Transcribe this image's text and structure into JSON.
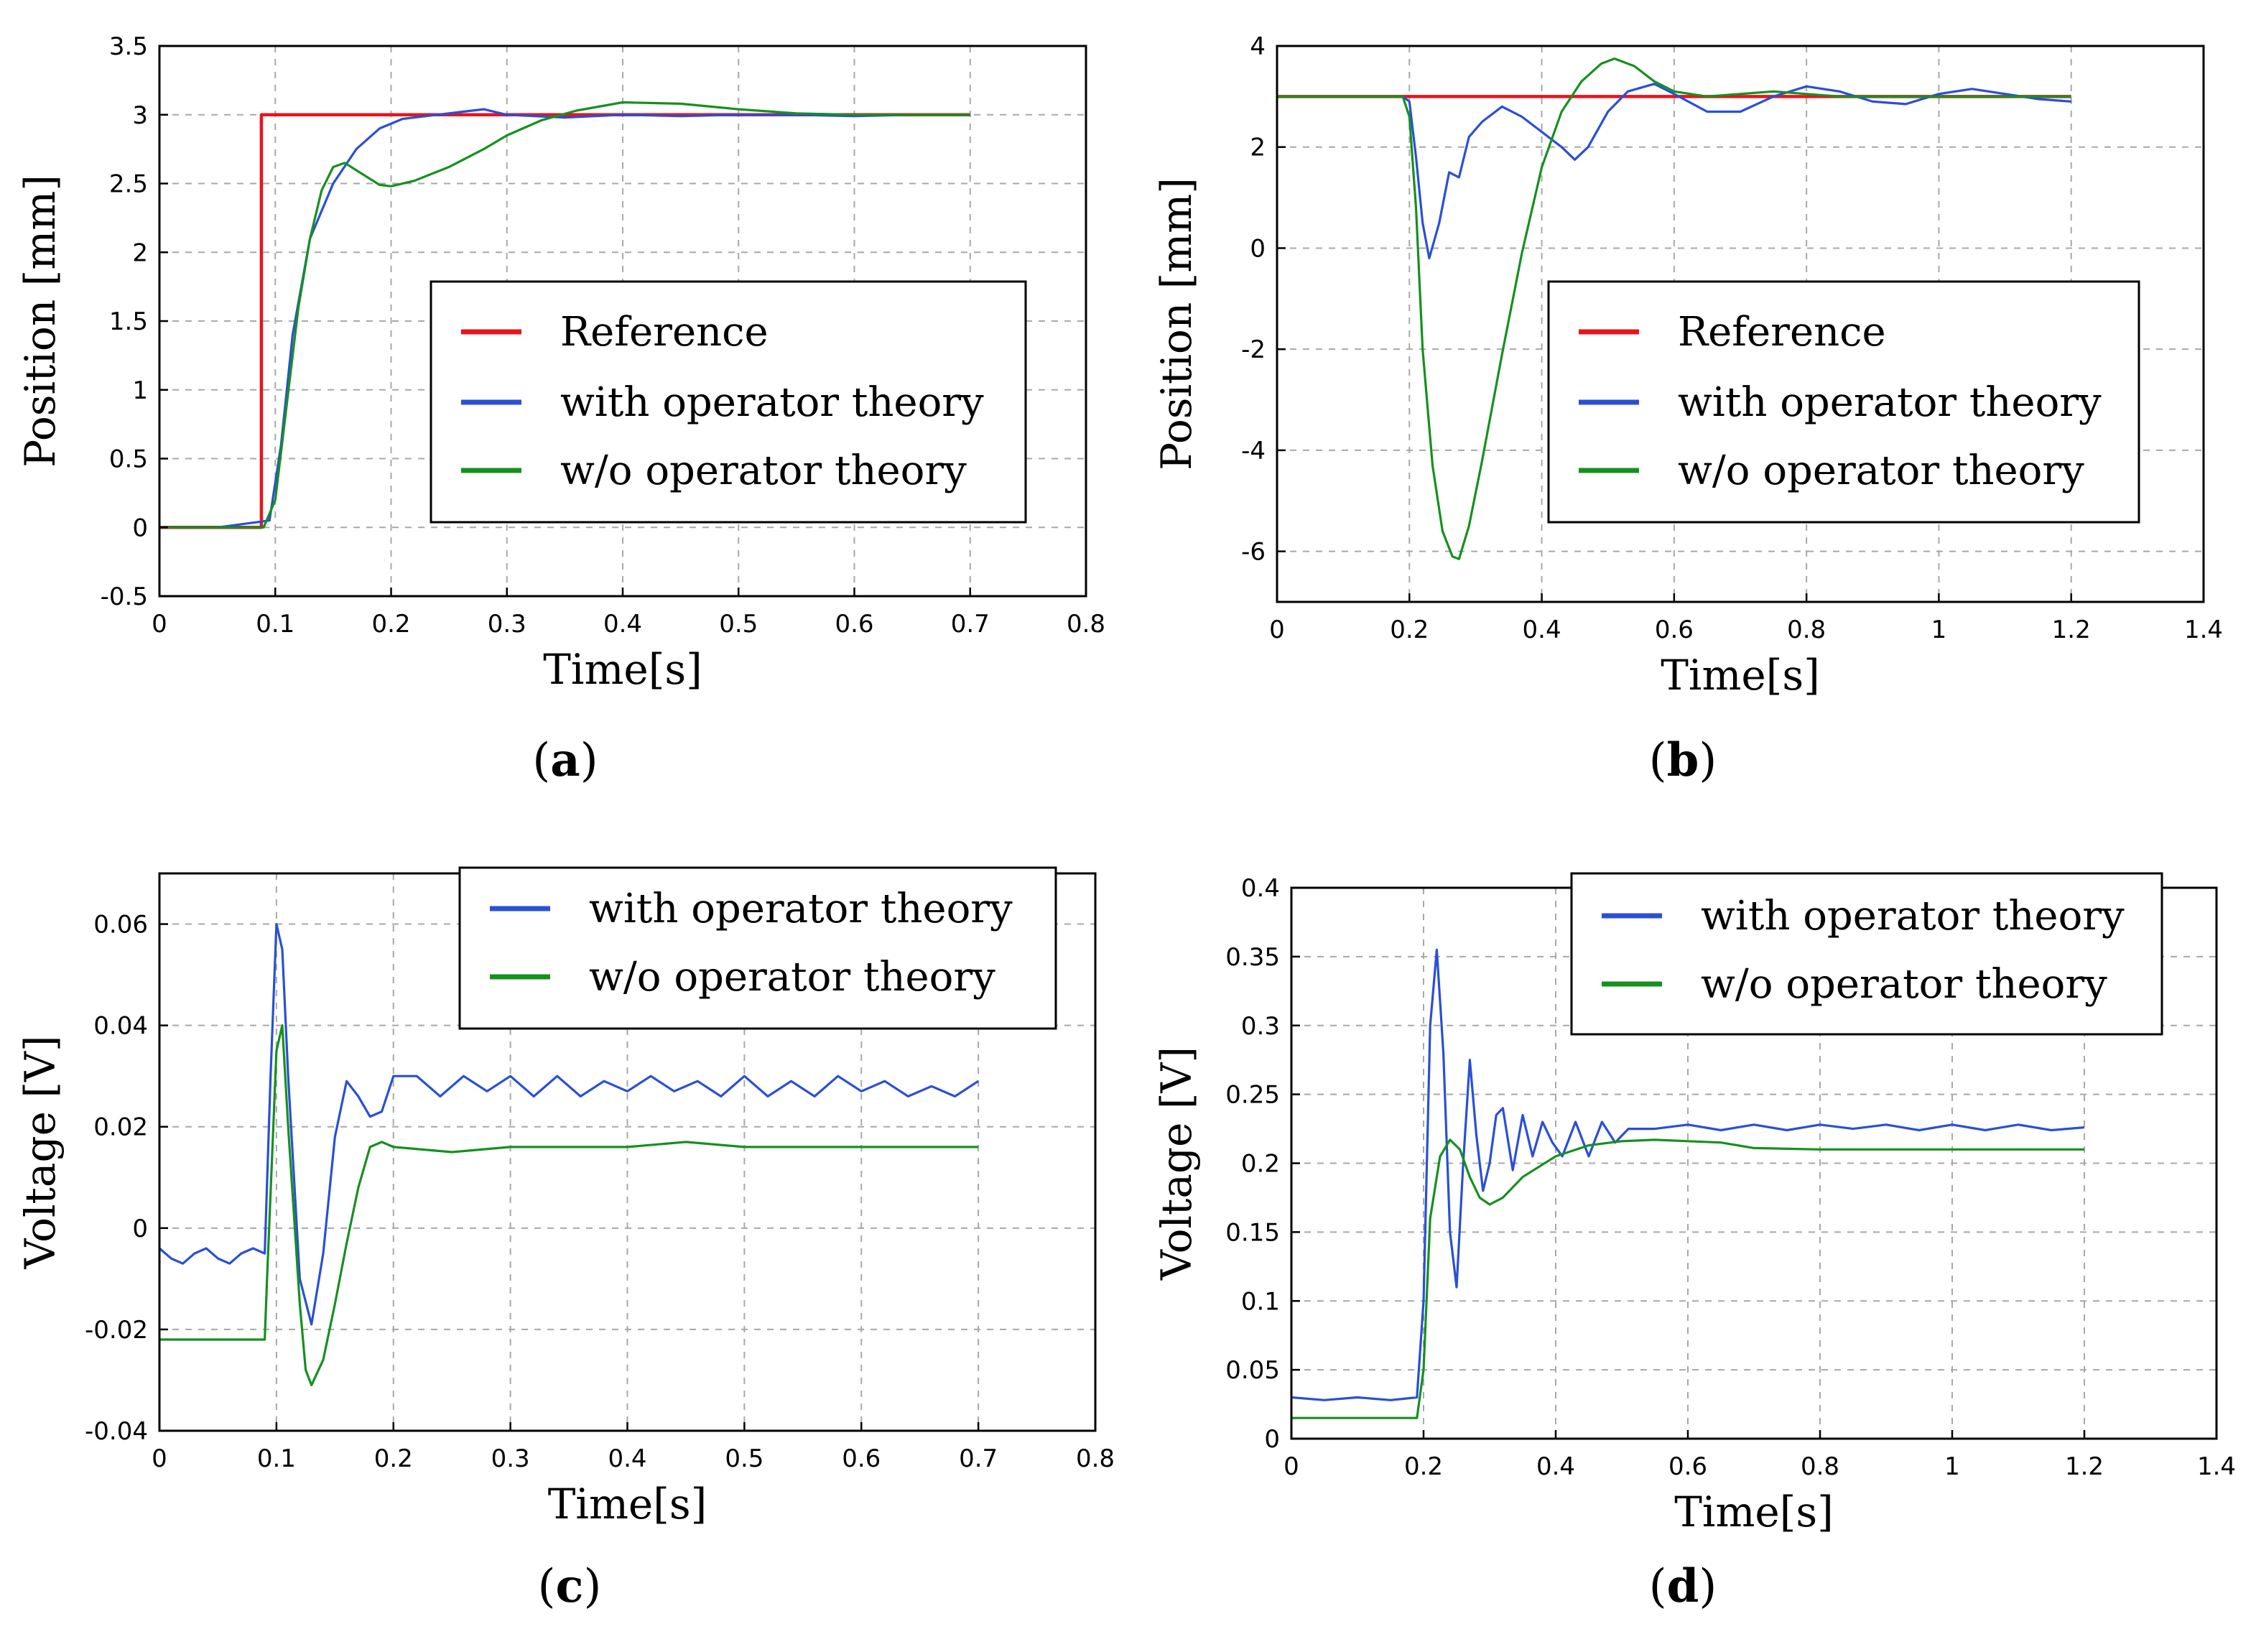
{
  "chart_data": [
    {
      "panel": "(a)",
      "caption_letter": "a",
      "type": "line",
      "xlabel": "Time[s]",
      "ylabel": "Position [mm]",
      "xlim": [
        0,
        0.8
      ],
      "ylim": [
        -0.5,
        3.5
      ],
      "xticks": [
        0,
        0.1,
        0.2,
        0.3,
        0.4,
        0.5,
        0.6,
        0.7,
        0.8
      ],
      "yticks": [
        -0.5,
        0,
        0.5,
        1,
        1.5,
        2,
        2.5,
        3,
        3.5
      ],
      "xtick_labels": [
        "0",
        "0.1",
        "0.2",
        "0.3",
        "0.4",
        "0.5",
        "0.6",
        "0.7",
        "0.8"
      ],
      "ytick_labels": [
        "-0.5",
        "0",
        "0.5",
        "1",
        "1.5",
        "2",
        "2.5",
        "3",
        "3.5"
      ],
      "grid": true,
      "legend_position": "center-right",
      "series": [
        {
          "name": "Reference",
          "color": "#e8141c",
          "x": [
            0,
            0.088,
            0.088,
            0.7
          ],
          "y": [
            0,
            0,
            3,
            3
          ]
        },
        {
          "name": "with operator theory",
          "color": "#2a4fd6",
          "x": [
            0,
            0.05,
            0.095,
            0.105,
            0.115,
            0.13,
            0.15,
            0.17,
            0.19,
            0.21,
            0.23,
            0.26,
            0.28,
            0.3,
            0.35,
            0.4,
            0.45,
            0.5,
            0.55,
            0.6,
            0.65,
            0.7
          ],
          "y": [
            0,
            0,
            0.05,
            0.6,
            1.4,
            2.1,
            2.5,
            2.75,
            2.9,
            2.97,
            2.99,
            3.02,
            3.04,
            3.0,
            2.98,
            3.0,
            2.99,
            3.0,
            3.0,
            2.99,
            3.0,
            3.0
          ]
        },
        {
          "name": "w/o operator theory",
          "color": "#16901f",
          "x": [
            0,
            0.09,
            0.1,
            0.11,
            0.12,
            0.13,
            0.14,
            0.15,
            0.16,
            0.175,
            0.19,
            0.2,
            0.22,
            0.25,
            0.28,
            0.3,
            0.33,
            0.36,
            0.4,
            0.45,
            0.5,
            0.55,
            0.6,
            0.65,
            0.7
          ],
          "y": [
            0,
            0,
            0.2,
            0.9,
            1.6,
            2.1,
            2.45,
            2.62,
            2.65,
            2.57,
            2.49,
            2.48,
            2.52,
            2.62,
            2.75,
            2.85,
            2.96,
            3.03,
            3.09,
            3.08,
            3.04,
            3.01,
            3.0,
            3.0,
            3.0
          ]
        }
      ]
    },
    {
      "panel": "(b)",
      "caption_letter": "b",
      "type": "line",
      "xlabel": "Time[s]",
      "ylabel": "Position [mm]",
      "xlim": [
        0,
        1.4
      ],
      "ylim": [
        -7,
        4
      ],
      "xticks": [
        0,
        0.2,
        0.4,
        0.6,
        0.8,
        1,
        1.2,
        1.4
      ],
      "yticks": [
        -6,
        -4,
        -2,
        0,
        2,
        4
      ],
      "xtick_labels": [
        "0",
        "0.2",
        "0.4",
        "0.6",
        "0.8",
        "1",
        "1.2",
        "1.4"
      ],
      "ytick_labels": [
        "-6",
        "-4",
        "-2",
        "0",
        "2",
        "4"
      ],
      "grid": true,
      "legend_position": "center-right",
      "series": [
        {
          "name": "Reference",
          "color": "#e8141c",
          "x": [
            0,
            1.2
          ],
          "y": [
            3,
            3
          ]
        },
        {
          "name": "with operator theory",
          "color": "#2a4fd6",
          "x": [
            0,
            0.19,
            0.2,
            0.21,
            0.22,
            0.23,
            0.245,
            0.26,
            0.275,
            0.29,
            0.31,
            0.34,
            0.37,
            0.4,
            0.43,
            0.45,
            0.47,
            0.5,
            0.53,
            0.57,
            0.6,
            0.65,
            0.7,
            0.75,
            0.8,
            0.85,
            0.9,
            0.95,
            1.0,
            1.05,
            1.1,
            1.15,
            1.2
          ],
          "y": [
            3,
            3,
            2.9,
            1.8,
            0.5,
            -0.2,
            0.5,
            1.5,
            1.4,
            2.2,
            2.5,
            2.8,
            2.6,
            2.3,
            2.0,
            1.75,
            2.0,
            2.7,
            3.1,
            3.25,
            3.05,
            2.7,
            2.7,
            3.0,
            3.2,
            3.1,
            2.9,
            2.85,
            3.05,
            3.15,
            3.05,
            2.95,
            2.9
          ]
        },
        {
          "name": "w/o operator theory",
          "color": "#16901f",
          "x": [
            0,
            0.19,
            0.2,
            0.21,
            0.22,
            0.235,
            0.25,
            0.265,
            0.275,
            0.29,
            0.31,
            0.34,
            0.37,
            0.4,
            0.43,
            0.46,
            0.49,
            0.51,
            0.54,
            0.57,
            0.6,
            0.65,
            0.7,
            0.75,
            0.8,
            0.85,
            0.9,
            0.95,
            1.0,
            1.1,
            1.2
          ],
          "y": [
            3,
            3,
            2.6,
            0.8,
            -2.0,
            -4.3,
            -5.6,
            -6.1,
            -6.15,
            -5.5,
            -4.2,
            -2.1,
            -0.1,
            1.6,
            2.7,
            3.3,
            3.65,
            3.75,
            3.6,
            3.3,
            3.1,
            3.0,
            3.05,
            3.1,
            3.05,
            3.0,
            3.0,
            3.0,
            3.0,
            3.0,
            3.0
          ]
        }
      ]
    },
    {
      "panel": "(c)",
      "caption_letter": "c",
      "type": "line",
      "xlabel": "Time[s]",
      "ylabel": "Voltage [V]",
      "xlim": [
        0,
        0.8
      ],
      "ylim": [
        -0.04,
        0.07
      ],
      "xticks": [
        0,
        0.1,
        0.2,
        0.3,
        0.4,
        0.5,
        0.6,
        0.7,
        0.8
      ],
      "yticks": [
        -0.04,
        -0.02,
        0,
        0.02,
        0.04,
        0.06
      ],
      "xtick_labels": [
        "0",
        "0.1",
        "0.2",
        "0.3",
        "0.4",
        "0.5",
        "0.6",
        "0.7",
        "0.8"
      ],
      "ytick_labels": [
        "-0.04",
        "-0.02",
        "0",
        "0.02",
        "0.04",
        "0.06"
      ],
      "grid": true,
      "legend_position": "top-right",
      "series": [
        {
          "name": "with operator theory",
          "color": "#2a4fd6",
          "x": [
            0,
            0.01,
            0.02,
            0.03,
            0.04,
            0.05,
            0.06,
            0.07,
            0.08,
            0.09,
            0.095,
            0.1,
            0.105,
            0.11,
            0.12,
            0.13,
            0.14,
            0.15,
            0.16,
            0.17,
            0.18,
            0.19,
            0.2,
            0.22,
            0.24,
            0.26,
            0.28,
            0.3,
            0.32,
            0.34,
            0.36,
            0.38,
            0.4,
            0.42,
            0.44,
            0.46,
            0.48,
            0.5,
            0.52,
            0.54,
            0.56,
            0.58,
            0.6,
            0.62,
            0.64,
            0.66,
            0.68,
            0.7
          ],
          "y": [
            -0.004,
            -0.006,
            -0.007,
            -0.005,
            -0.004,
            -0.006,
            -0.007,
            -0.005,
            -0.004,
            -0.005,
            0.03,
            0.06,
            0.055,
            0.03,
            -0.01,
            -0.019,
            -0.005,
            0.018,
            0.029,
            0.026,
            0.022,
            0.023,
            0.03,
            0.03,
            0.026,
            0.03,
            0.027,
            0.03,
            0.026,
            0.03,
            0.026,
            0.029,
            0.027,
            0.03,
            0.027,
            0.029,
            0.026,
            0.03,
            0.026,
            0.029,
            0.026,
            0.03,
            0.027,
            0.029,
            0.026,
            0.028,
            0.026,
            0.029
          ]
        },
        {
          "name": "w/o operator theory",
          "color": "#16901f",
          "x": [
            0,
            0.05,
            0.09,
            0.092,
            0.1,
            0.105,
            0.11,
            0.12,
            0.125,
            0.13,
            0.14,
            0.15,
            0.16,
            0.17,
            0.18,
            0.19,
            0.2,
            0.25,
            0.3,
            0.35,
            0.4,
            0.45,
            0.5,
            0.55,
            0.6,
            0.65,
            0.7
          ],
          "y": [
            -0.022,
            -0.022,
            -0.022,
            -0.01,
            0.035,
            0.04,
            0.02,
            -0.015,
            -0.028,
            -0.031,
            -0.026,
            -0.015,
            -0.003,
            0.008,
            0.016,
            0.017,
            0.016,
            0.015,
            0.016,
            0.016,
            0.016,
            0.017,
            0.016,
            0.016,
            0.016,
            0.016,
            0.016
          ]
        }
      ]
    },
    {
      "panel": "(d)",
      "caption_letter": "d",
      "type": "line",
      "xlabel": "Time[s]",
      "ylabel": "Voltage [V]",
      "xlim": [
        0,
        1.4
      ],
      "ylim": [
        0,
        0.4
      ],
      "xticks": [
        0,
        0.2,
        0.4,
        0.6,
        0.8,
        1,
        1.2,
        1.4
      ],
      "yticks": [
        0,
        0.05,
        0.1,
        0.15,
        0.2,
        0.25,
        0.3,
        0.35,
        0.4
      ],
      "xtick_labels": [
        "0",
        "0.2",
        "0.4",
        "0.6",
        "0.8",
        "1",
        "1.2",
        "1.4"
      ],
      "ytick_labels": [
        "0",
        "0.05",
        "0.1",
        "0.15",
        "0.2",
        "0.25",
        "0.3",
        "0.35",
        "0.4"
      ],
      "grid": true,
      "legend_position": "top-right",
      "series": [
        {
          "name": "with operator theory",
          "color": "#2a4fd6",
          "x": [
            0,
            0.05,
            0.1,
            0.15,
            0.19,
            0.2,
            0.21,
            0.22,
            0.23,
            0.24,
            0.25,
            0.26,
            0.27,
            0.28,
            0.29,
            0.3,
            0.31,
            0.32,
            0.335,
            0.35,
            0.365,
            0.38,
            0.395,
            0.41,
            0.43,
            0.45,
            0.47,
            0.49,
            0.51,
            0.55,
            0.6,
            0.65,
            0.7,
            0.75,
            0.8,
            0.85,
            0.9,
            0.95,
            1.0,
            1.05,
            1.1,
            1.15,
            1.2
          ],
          "y": [
            0.03,
            0.028,
            0.03,
            0.028,
            0.03,
            0.1,
            0.3,
            0.355,
            0.28,
            0.15,
            0.11,
            0.2,
            0.275,
            0.22,
            0.18,
            0.2,
            0.235,
            0.24,
            0.195,
            0.235,
            0.205,
            0.23,
            0.215,
            0.205,
            0.23,
            0.205,
            0.23,
            0.215,
            0.225,
            0.225,
            0.228,
            0.224,
            0.228,
            0.224,
            0.228,
            0.225,
            0.228,
            0.224,
            0.228,
            0.224,
            0.228,
            0.224,
            0.226
          ]
        },
        {
          "name": "w/o operator theory",
          "color": "#16901f",
          "x": [
            0,
            0.1,
            0.19,
            0.2,
            0.21,
            0.225,
            0.24,
            0.255,
            0.27,
            0.285,
            0.3,
            0.32,
            0.35,
            0.4,
            0.45,
            0.5,
            0.55,
            0.6,
            0.65,
            0.7,
            0.8,
            0.9,
            1.0,
            1.1,
            1.2
          ],
          "y": [
            0.015,
            0.015,
            0.015,
            0.05,
            0.16,
            0.205,
            0.217,
            0.21,
            0.19,
            0.175,
            0.17,
            0.175,
            0.19,
            0.205,
            0.213,
            0.216,
            0.217,
            0.216,
            0.215,
            0.211,
            0.21,
            0.21,
            0.21,
            0.21,
            0.21
          ]
        }
      ]
    }
  ]
}
